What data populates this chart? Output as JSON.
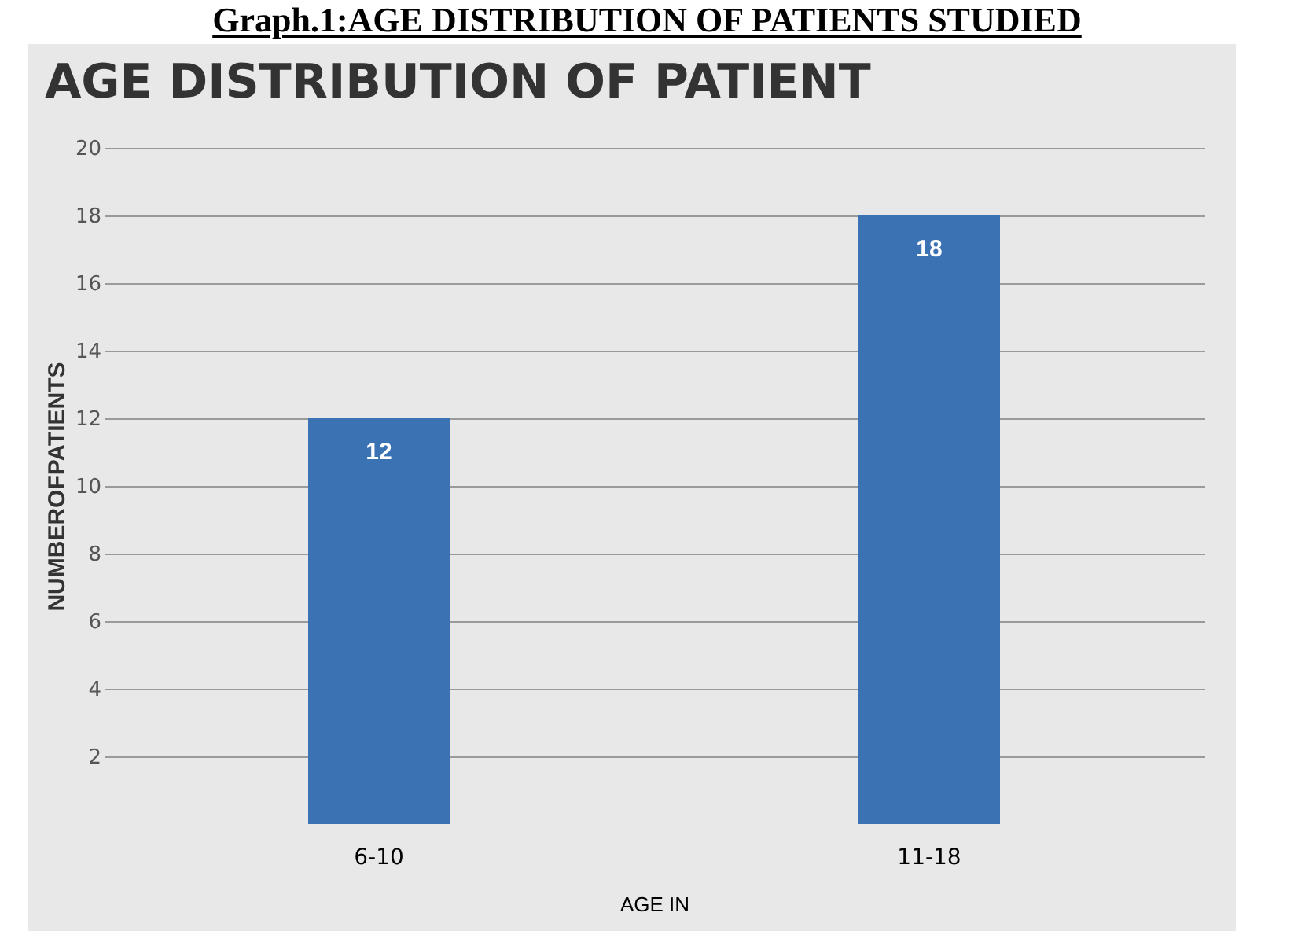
{
  "chart_data": {
    "type": "bar",
    "title": "AGE DISTRIBUTION OF PATIENT",
    "annotations": [
      "Graph.1:AGE DISTRIBUTION OF PATIENTS STUDIED"
    ],
    "xlabel": "AGE IN",
    "ylabel": "NUMBEROFPATIENTS",
    "categories": [
      "6-10",
      "11-18"
    ],
    "values": [
      12,
      18
    ],
    "color": "#3b72b3",
    "ylim": [
      0,
      20
    ],
    "yticks": [
      2,
      4,
      6,
      8,
      10,
      12,
      14,
      16,
      18,
      20
    ],
    "grid": "y",
    "data_labels": true
  }
}
